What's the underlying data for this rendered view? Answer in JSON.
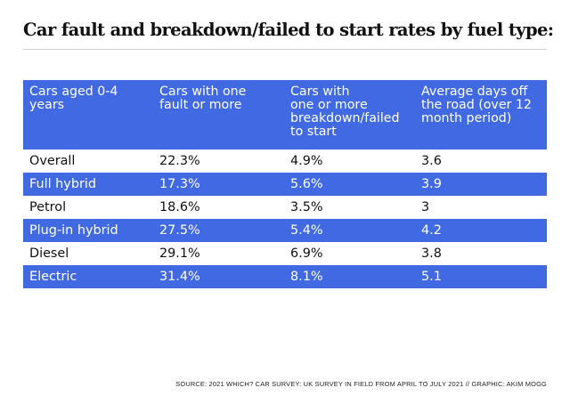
{
  "title": "Car fault and breakdown/failed to start rates by fuel type:",
  "colors": {
    "header_bg": "#4169e1",
    "stripe_bg": "#4169e1",
    "text": "#111111"
  },
  "chart_data": {
    "type": "table",
    "columns": [
      "Cars aged 0-4\nyears",
      "Cars with one\nfault or more",
      "Cars with\none or more\nbreakdown/failed\nto start",
      "Average days off\nthe road (over 12\nmonth period)"
    ],
    "rows": [
      [
        "Overall",
        "22.3%",
        "4.9%",
        "3.6"
      ],
      [
        "Full hybrid",
        "17.3%",
        "5.6%",
        "3.9"
      ],
      [
        "Petrol",
        "18.6%",
        "3.5%",
        "3"
      ],
      [
        "Plug-in hybrid",
        "27.5%",
        "5.4%",
        "4.2"
      ],
      [
        "Diesel",
        "29.1%",
        "6.9%",
        "3.8"
      ],
      [
        "Electric",
        "31.4%",
        "8.1%",
        "5.1"
      ]
    ],
    "striped_rows": [
      1,
      3,
      5
    ]
  },
  "source": "SOURCE: 2021 WHICH? CAR SURVEY: UK SURVEY IN FIELD FROM APRIL TO JULY 2021 // GRAPHIC: AKIM MOGG"
}
